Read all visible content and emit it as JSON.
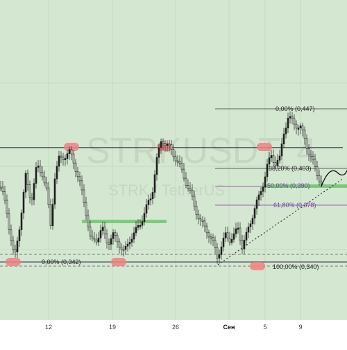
{
  "colors": {
    "background": "#d4e7d1",
    "axis_bar": "#ffffff",
    "candle": "#1f1f1f",
    "zone_red": "#ee8080",
    "zone_green": "#6cc86c",
    "fib_purple": "#9a60b4",
    "watermark": "#000000"
  },
  "watermark": {
    "symbol": "STRKUSDT, 4",
    "subtitle": "STRK / TetherUS"
  },
  "x_axis": {
    "ticks": [
      "12",
      "19",
      "26",
      "Сен",
      "5",
      "9"
    ]
  },
  "fib_labels": {
    "level_0": "0,00% (0,447)",
    "level_38": "38,20% (0,403)",
    "level_50": "50,00% (0,390)",
    "level_61": "61,80% (0,378)",
    "level_100": "100,00% (0,340)"
  },
  "left_fib_label": "0,00% (0,342)",
  "chart_data": {
    "type": "candlestick",
    "symbol": "STRKUSDT",
    "timeframe": "4",
    "x_ticks": [
      "12",
      "19",
      "26",
      "Сен",
      "5",
      "9"
    ],
    "fib_levels": [
      {
        "percent": "0,00%",
        "price": 0.447
      },
      {
        "percent": "38,20%",
        "price": 0.403
      },
      {
        "percent": "50,00%",
        "price": 0.39
      },
      {
        "percent": "61,80%",
        "price": 0.378
      },
      {
        "percent": "100,00%",
        "price": 0.34
      }
    ],
    "left_fib_level": {
      "percent": "0,00%",
      "price": 0.342
    },
    "resistance_line": 0.424,
    "support_line": 0.342,
    "green_zones": [
      0.37,
      0.393
    ],
    "red_markers": [
      {
        "near": "high",
        "count": 3
      },
      {
        "near": "low",
        "count": 3
      }
    ],
    "ylim": [
      0.3,
      0.48
    ]
  }
}
